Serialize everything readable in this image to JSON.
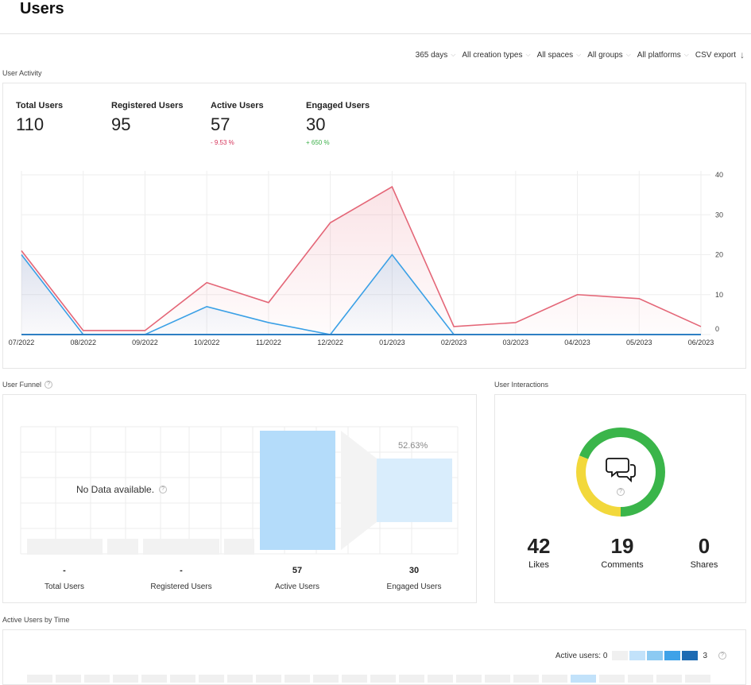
{
  "page": {
    "title": "Users"
  },
  "filters": [
    {
      "label": "365 days"
    },
    {
      "label": "All creation types"
    },
    {
      "label": "All spaces"
    },
    {
      "label": "All groups"
    },
    {
      "label": "All platforms"
    }
  ],
  "export_label": "CSV export",
  "user_activity": {
    "section_label": "User Activity",
    "colors": [
      "#f2d83b",
      "#2f6ed6",
      "#e46677",
      "#3aa0e6"
    ],
    "metrics": [
      {
        "label": "Total Users",
        "value": "110",
        "change": ""
      },
      {
        "label": "Registered Users",
        "value": "95",
        "change": ""
      },
      {
        "label": "Active Users",
        "value": "57",
        "change": "- 9.53 %",
        "change_color": "#d6335a"
      },
      {
        "label": "Engaged Users",
        "value": "30",
        "change": "+ 650 %",
        "change_color": "#3db04a"
      }
    ]
  },
  "chart_data": {
    "type": "area",
    "categories": [
      "07/2022",
      "08/2022",
      "09/2022",
      "10/2022",
      "11/2022",
      "12/2022",
      "01/2023",
      "02/2023",
      "03/2023",
      "04/2023",
      "05/2023",
      "06/2023"
    ],
    "y_ticks": [
      "0",
      "10",
      "20",
      "30",
      "40"
    ],
    "ylim": [
      0,
      40
    ],
    "series": [
      {
        "color": "#e46677",
        "values": [
          21,
          1,
          1,
          13,
          8,
          28,
          37,
          2,
          3,
          10,
          9,
          2
        ]
      },
      {
        "color": "#3aa0e6",
        "values": [
          20,
          0,
          0,
          7,
          3,
          0,
          20,
          0,
          0,
          0,
          0,
          0
        ]
      }
    ]
  },
  "user_funnel": {
    "section_label": "User Funnel",
    "no_data": "No Data available.",
    "conversion": "52.63%",
    "stats": [
      {
        "value": "-",
        "label": "Total Users"
      },
      {
        "value": "-",
        "label": "Registered Users"
      },
      {
        "value": "57",
        "label": "Active Users"
      },
      {
        "value": "30",
        "label": "Engaged Users"
      }
    ]
  },
  "user_interactions": {
    "section_label": "User Interactions",
    "donut": [
      {
        "label": "Likes",
        "value": 42,
        "color": "#3ab54a"
      },
      {
        "label": "Comments",
        "value": 19,
        "color": "#f2d83b"
      },
      {
        "label": "Shares",
        "value": 0,
        "color": "#3aa0e6"
      }
    ],
    "stats": [
      {
        "value": "42",
        "label": "Likes"
      },
      {
        "value": "19",
        "label": "Comments"
      },
      {
        "value": "0",
        "label": "Shares"
      }
    ]
  },
  "active_by_time": {
    "section_label": "Active Users by Time",
    "legend_label": "Active users: 0",
    "legend_max": "3",
    "legend_colors": [
      "#f0f0f0",
      "#c2e2fa",
      "#8ccaf2",
      "#3ea2e8",
      "#1d6bb3"
    ]
  }
}
